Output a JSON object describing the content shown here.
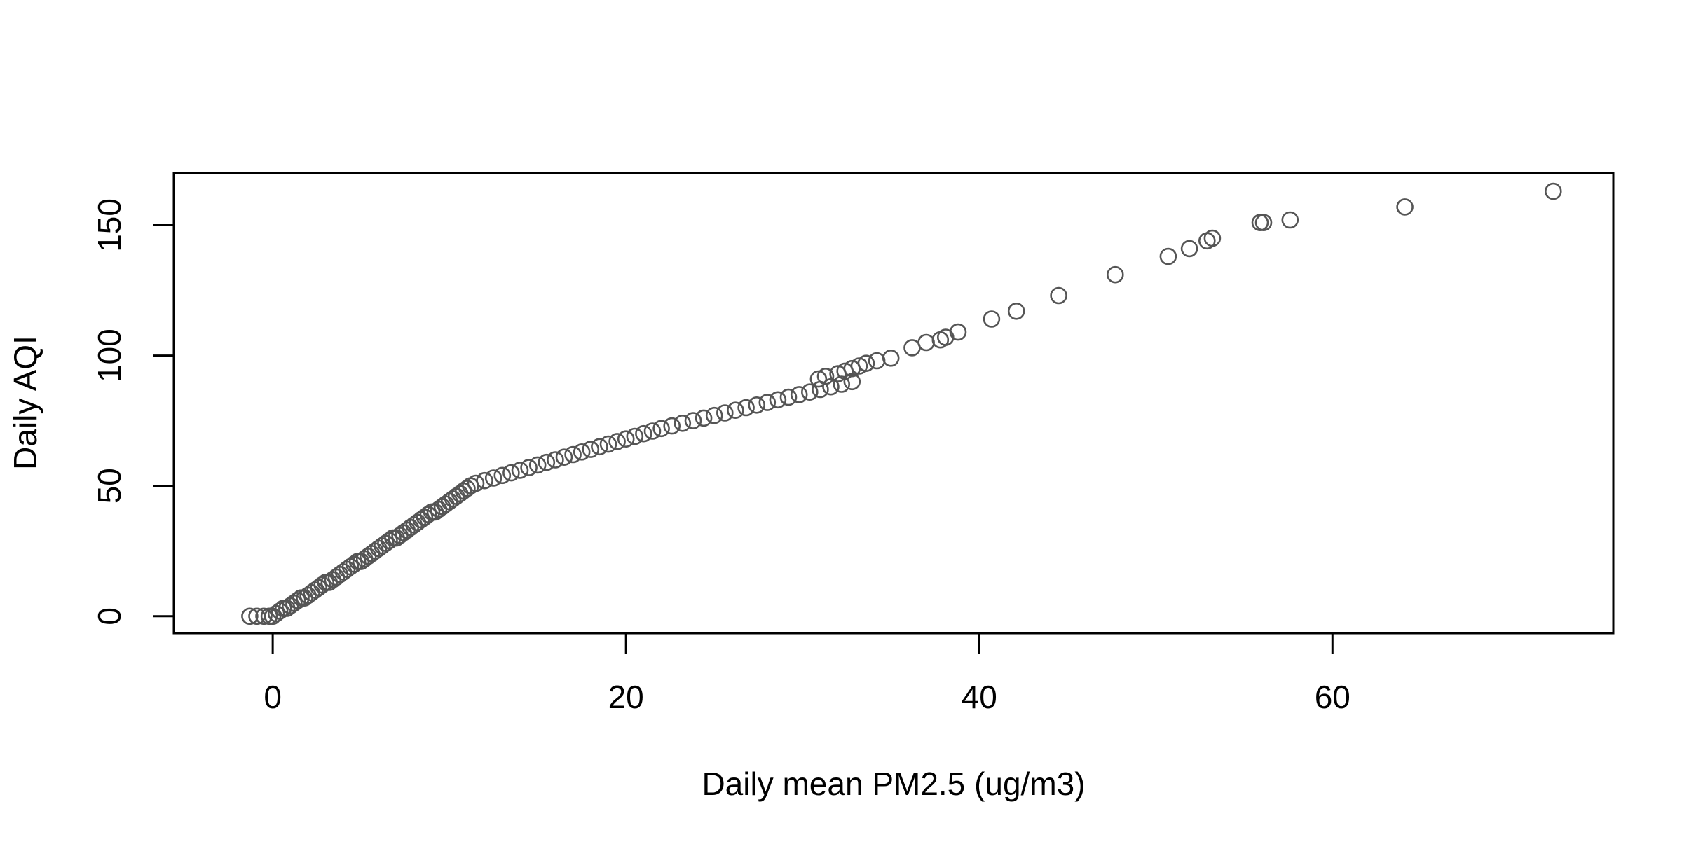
{
  "chart_data": {
    "type": "scatter",
    "title": "",
    "xlabel": "Daily mean PM2.5 (ug/m3)",
    "ylabel": "Daily AQI",
    "xlim": [
      -5.6,
      75.9
    ],
    "ylim": [
      -6.5,
      170
    ],
    "x_ticks": [
      0,
      20,
      40,
      60
    ],
    "y_ticks": [
      0,
      50,
      100,
      150
    ],
    "x_tick_labels": [
      "0",
      "20",
      "40",
      "60"
    ],
    "y_tick_labels": [
      "0",
      "50",
      "100",
      "150"
    ],
    "grid": false,
    "legend": "none",
    "marker": "open-circle",
    "marker_color": "#555555",
    "series": [
      {
        "points": [
          [
            -1.3,
            0
          ],
          [
            -0.9,
            0
          ],
          [
            -0.5,
            0
          ],
          [
            -0.2,
            0
          ],
          [
            0.0,
            0
          ],
          [
            0.2,
            1
          ],
          [
            0.4,
            2
          ],
          [
            0.6,
            3
          ],
          [
            0.8,
            3
          ],
          [
            1.0,
            4
          ],
          [
            1.2,
            5
          ],
          [
            1.4,
            6
          ],
          [
            1.6,
            7
          ],
          [
            1.8,
            7
          ],
          [
            2.0,
            8
          ],
          [
            2.2,
            9
          ],
          [
            2.4,
            10
          ],
          [
            2.6,
            11
          ],
          [
            2.8,
            12
          ],
          [
            3.0,
            13
          ],
          [
            3.2,
            13
          ],
          [
            3.4,
            14
          ],
          [
            3.6,
            15
          ],
          [
            3.8,
            16
          ],
          [
            4.0,
            17
          ],
          [
            4.2,
            18
          ],
          [
            4.4,
            19
          ],
          [
            4.6,
            20
          ],
          [
            4.8,
            21
          ],
          [
            5.0,
            21
          ],
          [
            5.2,
            22
          ],
          [
            5.4,
            23
          ],
          [
            5.6,
            24
          ],
          [
            5.8,
            25
          ],
          [
            6.0,
            26
          ],
          [
            6.2,
            27
          ],
          [
            6.4,
            28
          ],
          [
            6.6,
            29
          ],
          [
            6.8,
            30
          ],
          [
            7.0,
            30
          ],
          [
            7.2,
            31
          ],
          [
            7.4,
            32
          ],
          [
            7.6,
            33
          ],
          [
            7.8,
            34
          ],
          [
            8.0,
            35
          ],
          [
            8.2,
            36
          ],
          [
            8.4,
            37
          ],
          [
            8.6,
            38
          ],
          [
            8.8,
            39
          ],
          [
            9.0,
            40
          ],
          [
            9.2,
            40
          ],
          [
            9.4,
            41
          ],
          [
            9.6,
            42
          ],
          [
            9.8,
            43
          ],
          [
            10.0,
            44
          ],
          [
            10.2,
            45
          ],
          [
            10.4,
            46
          ],
          [
            10.6,
            47
          ],
          [
            10.8,
            48
          ],
          [
            11.0,
            49
          ],
          [
            11.2,
            50
          ],
          [
            11.5,
            51
          ],
          [
            12.0,
            52
          ],
          [
            12.5,
            53
          ],
          [
            13.0,
            54
          ],
          [
            13.5,
            55
          ],
          [
            14.0,
            56
          ],
          [
            14.5,
            57
          ],
          [
            15.0,
            58
          ],
          [
            15.5,
            59
          ],
          [
            16.0,
            60
          ],
          [
            16.5,
            61
          ],
          [
            17.0,
            62
          ],
          [
            17.5,
            63
          ],
          [
            18.0,
            64
          ],
          [
            18.5,
            65
          ],
          [
            19.0,
            66
          ],
          [
            19.5,
            67
          ],
          [
            20.0,
            68
          ],
          [
            20.5,
            69
          ],
          [
            21.0,
            70
          ],
          [
            21.5,
            71
          ],
          [
            22.0,
            72
          ],
          [
            22.6,
            73
          ],
          [
            23.2,
            74
          ],
          [
            23.8,
            75
          ],
          [
            24.4,
            76
          ],
          [
            25.0,
            77
          ],
          [
            25.6,
            78
          ],
          [
            26.2,
            79
          ],
          [
            26.8,
            80
          ],
          [
            27.4,
            81
          ],
          [
            28.0,
            82
          ],
          [
            28.6,
            83
          ],
          [
            29.2,
            84
          ],
          [
            29.8,
            85
          ],
          [
            30.4,
            86
          ],
          [
            31.0,
            87
          ],
          [
            31.6,
            88
          ],
          [
            32.2,
            89
          ],
          [
            32.8,
            90
          ],
          [
            30.9,
            91
          ],
          [
            31.3,
            92
          ],
          [
            32.0,
            93
          ],
          [
            32.4,
            94
          ],
          [
            32.8,
            95
          ],
          [
            33.2,
            96
          ],
          [
            33.6,
            97
          ],
          [
            34.2,
            98
          ],
          [
            35.0,
            99
          ],
          [
            36.2,
            103
          ],
          [
            37.0,
            105
          ],
          [
            37.8,
            106
          ],
          [
            38.1,
            107
          ],
          [
            38.8,
            109
          ],
          [
            40.7,
            114
          ],
          [
            42.1,
            117
          ],
          [
            44.5,
            123
          ],
          [
            47.7,
            131
          ],
          [
            50.7,
            138
          ],
          [
            51.9,
            141
          ],
          [
            52.9,
            144
          ],
          [
            53.2,
            145
          ],
          [
            55.9,
            151
          ],
          [
            56.1,
            151
          ],
          [
            57.6,
            152
          ],
          [
            64.1,
            157
          ],
          [
            72.5,
            163
          ]
        ]
      }
    ]
  }
}
